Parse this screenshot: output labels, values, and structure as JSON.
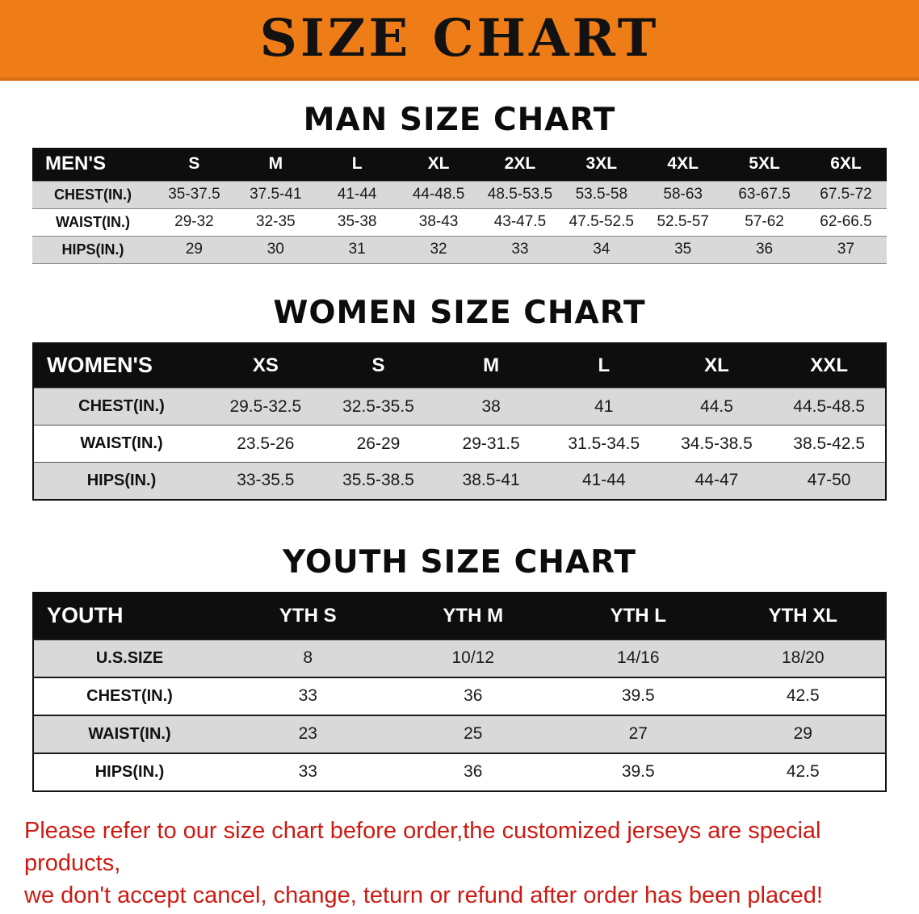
{
  "colors": {
    "banner_bg": "#ee7d18",
    "header_bg": "#0e0e0e",
    "row_alt": "#d9d9d9",
    "note_red": "#ce1a12"
  },
  "banner": {
    "title": "SIZE CHART"
  },
  "men": {
    "section_title": "MAN SIZE CHART",
    "header": [
      "MEN'S",
      "S",
      "M",
      "L",
      "XL",
      "2XL",
      "3XL",
      "4XL",
      "5XL",
      "6XL"
    ],
    "rows": [
      [
        "CHEST(IN.)",
        "35-37.5",
        "37.5-41",
        "41-44",
        "44-48.5",
        "48.5-53.5",
        "53.5-58",
        "58-63",
        "63-67.5",
        "67.5-72"
      ],
      [
        "WAIST(IN.)",
        "29-32",
        "32-35",
        "35-38",
        "38-43",
        "43-47.5",
        "47.5-52.5",
        "52.5-57",
        "57-62",
        "62-66.5"
      ],
      [
        "HIPS(IN.)",
        "29",
        "30",
        "31",
        "32",
        "33",
        "34",
        "35",
        "36",
        "37"
      ]
    ]
  },
  "women": {
    "section_title": "WOMEN SIZE CHART",
    "header": [
      "WOMEN'S",
      "XS",
      "S",
      "M",
      "L",
      "XL",
      "XXL"
    ],
    "rows": [
      [
        "CHEST(IN.)",
        "29.5-32.5",
        "32.5-35.5",
        "38",
        "41",
        "44.5",
        "44.5-48.5"
      ],
      [
        "WAIST(IN.)",
        "23.5-26",
        "26-29",
        "29-31.5",
        "31.5-34.5",
        "34.5-38.5",
        "38.5-42.5"
      ],
      [
        "HIPS(IN.)",
        "33-35.5",
        "35.5-38.5",
        "38.5-41",
        "41-44",
        "44-47",
        "47-50"
      ]
    ]
  },
  "youth": {
    "section_title": "YOUTH SIZE CHART",
    "header": [
      "YOUTH",
      "YTH S",
      "YTH M",
      "YTH L",
      "YTH XL"
    ],
    "rows": [
      [
        "U.S.SIZE",
        "8",
        "10/12",
        "14/16",
        "18/20"
      ],
      [
        "CHEST(IN.)",
        "33",
        "36",
        "39.5",
        "42.5"
      ],
      [
        "WAIST(IN.)",
        "23",
        "25",
        "27",
        "29"
      ],
      [
        "HIPS(IN.)",
        "33",
        "36",
        "39.5",
        "42.5"
      ]
    ]
  },
  "note": {
    "line1": "Please refer to our size chart before order,the customized jerseys are special products,",
    "line2": "we don't accept cancel, change, teturn or refund after order has been placed!"
  }
}
